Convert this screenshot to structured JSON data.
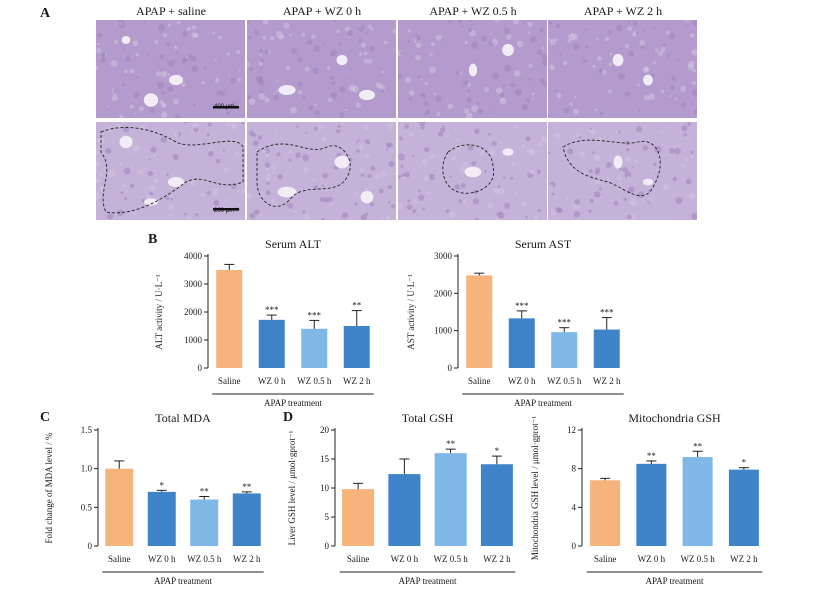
{
  "panel_letters": [
    "A",
    "B",
    "C",
    "D"
  ],
  "histology": {
    "column_labels": [
      "APAP + saline",
      "APAP + WZ 0 h",
      "APAP + WZ 0.5 h",
      "APAP + WZ 2 h"
    ],
    "scale_bar_top": "400 μm",
    "scale_bar_bottom": "200 μm"
  },
  "colors": {
    "saline": "#f7b37c",
    "wz0": "#3f84c9",
    "wz05": "#7fb7e6",
    "wz2": "#3f84c9",
    "tissue": "#b59ccc"
  },
  "chart_data": [
    {
      "id": "alt",
      "type": "bar",
      "title": "Serum ALT",
      "ylabel": "ALT activity / U·L⁻¹",
      "xlabel": "APAP treatment",
      "categories": [
        "Saline",
        "WZ 0 h",
        "WZ 0.5 h",
        "WZ 2 h"
      ],
      "values": [
        3500,
        1720,
        1400,
        1500
      ],
      "errors": [
        200,
        170,
        300,
        550
      ],
      "significance": [
        "",
        "***",
        "***",
        "**"
      ],
      "ylim": [
        0,
        4000
      ],
      "yticks": [
        "0",
        "1000",
        "2000",
        "3000",
        "4000"
      ]
    },
    {
      "id": "ast",
      "type": "bar",
      "title": "Serum AST",
      "ylabel": "AST activity / U·L⁻¹",
      "xlabel": "APAP treatment",
      "categories": [
        "Saline",
        "WZ 0 h",
        "WZ 0.5 h",
        "WZ 2 h"
      ],
      "values": [
        2480,
        1330,
        960,
        1030
      ],
      "errors": [
        60,
        200,
        120,
        320
      ],
      "significance": [
        "",
        "***",
        "***",
        "***"
      ],
      "ylim": [
        0,
        3000
      ],
      "yticks": [
        "0",
        "1000",
        "2000",
        "3000"
      ]
    },
    {
      "id": "mda",
      "type": "bar",
      "title": "Total MDA",
      "ylabel": "Fold change of MDA level / %",
      "xlabel": "APAP treatment",
      "categories": [
        "Saline",
        "WZ 0 h",
        "WZ 0.5 h",
        "WZ 2 h"
      ],
      "values": [
        1.0,
        0.7,
        0.6,
        0.68
      ],
      "errors": [
        0.1,
        0.02,
        0.04,
        0.02
      ],
      "significance": [
        "",
        "*",
        "**",
        "**"
      ],
      "ylim": [
        0,
        1.5
      ],
      "yticks": [
        "0",
        "0.5",
        "1.0",
        "1.5"
      ]
    },
    {
      "id": "gsh",
      "type": "bar",
      "title": "Total GSH",
      "ylabel": "Liver GSH level / μmol·gprot⁻¹",
      "xlabel": "APAP treatment",
      "categories": [
        "Saline",
        "WZ 0 h",
        "WZ 0.5 h",
        "WZ 2 h"
      ],
      "values": [
        9.8,
        12.4,
        16.0,
        14.1
      ],
      "errors": [
        1.0,
        2.6,
        0.7,
        1.4
      ],
      "significance": [
        "",
        "",
        "**",
        "*"
      ],
      "ylim": [
        0,
        20
      ],
      "yticks": [
        "0",
        "5",
        "10",
        "15",
        "20"
      ]
    },
    {
      "id": "mito",
      "type": "bar",
      "title": "Mitochondria GSH",
      "ylabel": "Mitochondria GSH level / μmol·gprot⁻¹",
      "xlabel": "APAP treatment",
      "categories": [
        "Saline",
        "WZ 0 h",
        "WZ 0.5 h",
        "WZ 2 h"
      ],
      "values": [
        6.8,
        8.5,
        9.2,
        7.9
      ],
      "errors": [
        0.2,
        0.3,
        0.6,
        0.2
      ],
      "significance": [
        "",
        "**",
        "**",
        "*"
      ],
      "ylim": [
        0,
        12
      ],
      "yticks": [
        "0",
        "4",
        "8",
        "12"
      ]
    }
  ]
}
